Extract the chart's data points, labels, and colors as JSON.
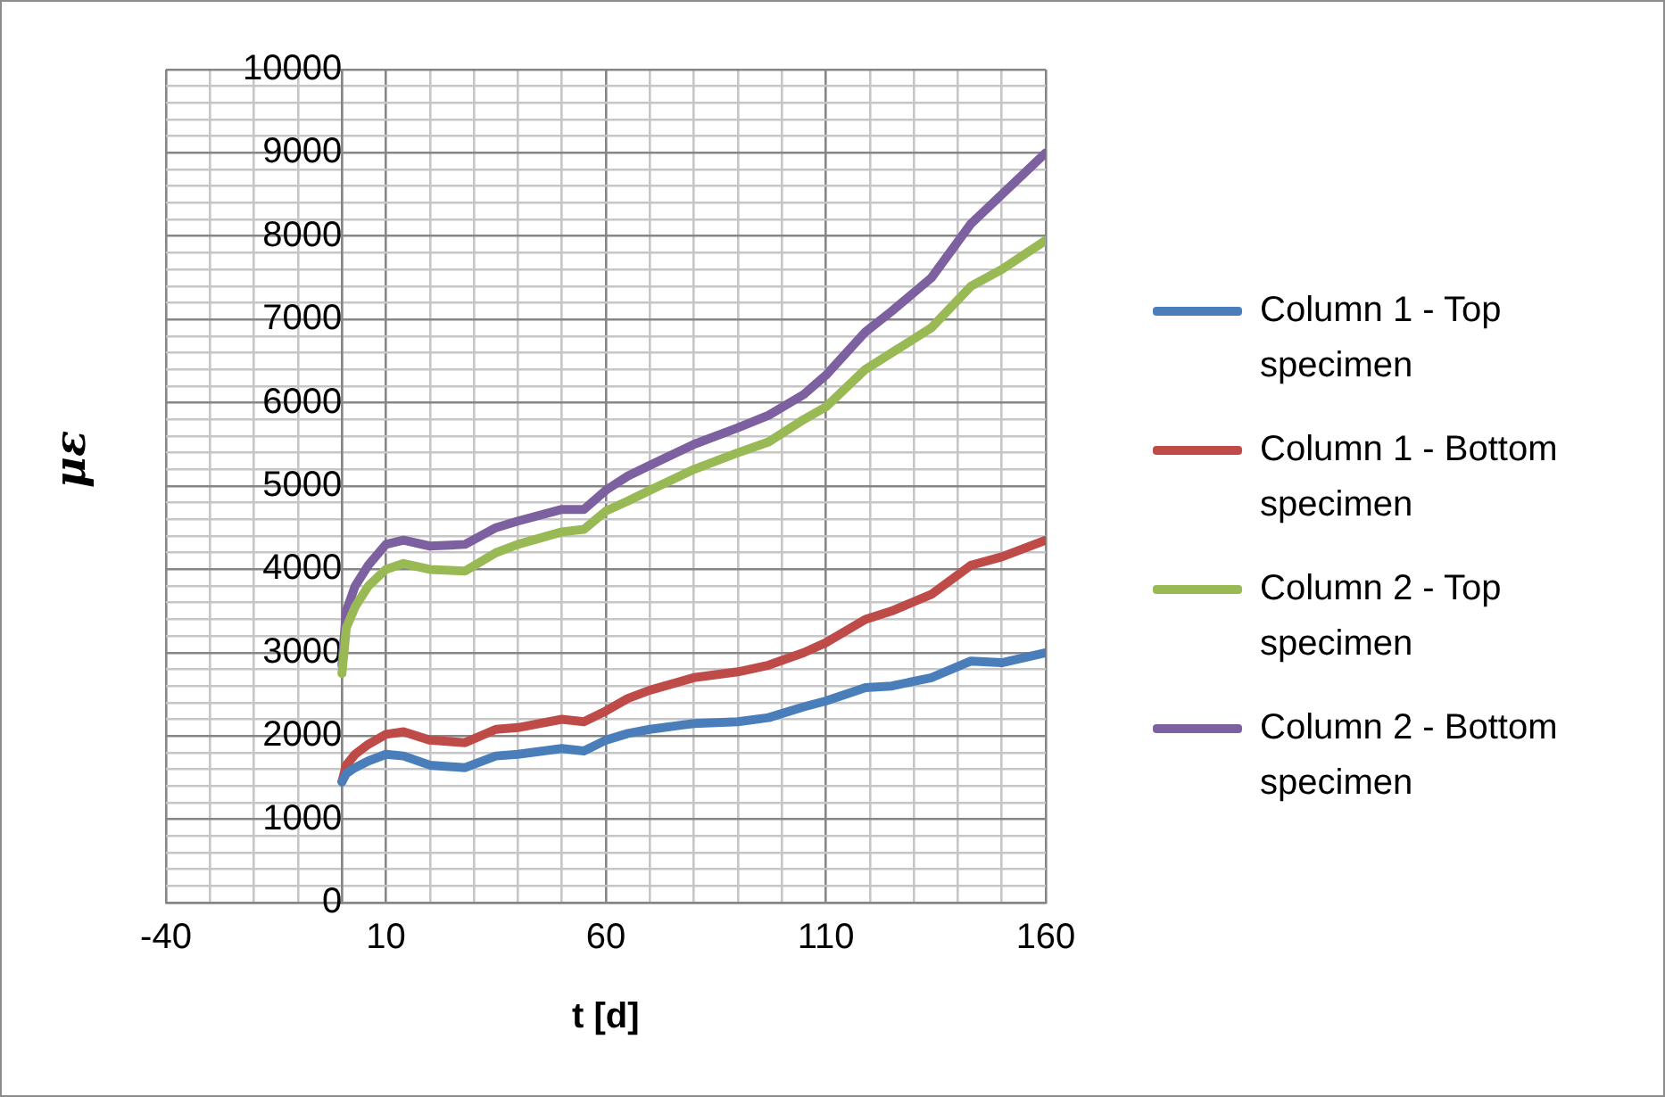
{
  "chart_data": {
    "type": "line",
    "xlabel": "t [d]",
    "ylabel": "με",
    "xlim": [
      -40,
      160
    ],
    "ylim": [
      0,
      10000
    ],
    "xticks": [
      -40,
      {
        "value": -30,
        "label": null
      },
      {
        "value": -20,
        "label": null
      },
      {
        "value": -10,
        "label": null
      },
      {
        "value": 0,
        "label": null
      },
      10,
      {
        "value": 20,
        "label": null
      },
      {
        "value": 30,
        "label": null
      },
      {
        "value": 40,
        "label": null
      },
      {
        "value": 50,
        "label": null
      },
      60,
      {
        "value": 70,
        "label": null
      },
      {
        "value": 80,
        "label": null
      },
      {
        "value": 90,
        "label": null
      },
      {
        "value": 100,
        "label": null
      },
      110,
      {
        "value": 120,
        "label": null
      },
      {
        "value": 130,
        "label": null
      },
      {
        "value": 140,
        "label": null
      },
      {
        "value": 150,
        "label": null
      },
      160
    ],
    "yticks": [
      0,
      {
        "value": 200,
        "label": null
      },
      {
        "value": 400,
        "label": null
      },
      {
        "value": 600,
        "label": null
      },
      {
        "value": 800,
        "label": null
      },
      1000,
      {
        "value": 1200,
        "label": null
      },
      {
        "value": 1400,
        "label": null
      },
      {
        "value": 1600,
        "label": null
      },
      {
        "value": 1800,
        "label": null
      },
      2000,
      {
        "value": 2200,
        "label": null
      },
      {
        "value": 2400,
        "label": null
      },
      {
        "value": 2600,
        "label": null
      },
      {
        "value": 2800,
        "label": null
      },
      3000,
      {
        "value": 3200,
        "label": null
      },
      {
        "value": 3400,
        "label": null
      },
      {
        "value": 3600,
        "label": null
      },
      {
        "value": 3800,
        "label": null
      },
      4000,
      {
        "value": 4200,
        "label": null
      },
      {
        "value": 4400,
        "label": null
      },
      {
        "value": 4600,
        "label": null
      },
      {
        "value": 4800,
        "label": null
      },
      5000,
      {
        "value": 5200,
        "label": null
      },
      {
        "value": 5400,
        "label": null
      },
      {
        "value": 5600,
        "label": null
      },
      {
        "value": 5800,
        "label": null
      },
      6000,
      {
        "value": 6200,
        "label": null
      },
      {
        "value": 6400,
        "label": null
      },
      {
        "value": 6600,
        "label": null
      },
      {
        "value": 6800,
        "label": null
      },
      7000,
      {
        "value": 7200,
        "label": null
      },
      {
        "value": 7400,
        "label": null
      },
      {
        "value": 7600,
        "label": null
      },
      {
        "value": 7800,
        "label": null
      },
      8000,
      {
        "value": 8200,
        "label": null
      },
      {
        "value": 8400,
        "label": null
      },
      {
        "value": 8600,
        "label": null
      },
      {
        "value": 8800,
        "label": null
      },
      9000,
      {
        "value": 9200,
        "label": null
      },
      {
        "value": 9400,
        "label": null
      },
      {
        "value": 9600,
        "label": null
      },
      {
        "value": 9800,
        "label": null
      },
      10000
    ],
    "x": [
      0,
      1,
      3,
      6,
      10,
      14,
      20,
      28,
      35,
      40,
      50,
      55,
      60,
      65,
      70,
      80,
      90,
      97,
      105,
      110,
      119,
      125,
      134,
      143,
      150,
      160
    ],
    "series": [
      {
        "name": "Column 1 - Top specimen",
        "color": "#4a7ebb",
        "values": [
          1450,
          1550,
          1620,
          1700,
          1780,
          1760,
          1650,
          1620,
          1760,
          1780,
          1850,
          1820,
          1950,
          2030,
          2080,
          2150,
          2170,
          2220,
          2350,
          2420,
          2580,
          2600,
          2700,
          2900,
          2880,
          3000
        ]
      },
      {
        "name": "Column 1 - Bottom specimen",
        "color": "#be4b48",
        "values": [
          1450,
          1650,
          1780,
          1900,
          2020,
          2050,
          1950,
          1920,
          2080,
          2100,
          2200,
          2170,
          2300,
          2450,
          2550,
          2700,
          2770,
          2850,
          3000,
          3120,
          3400,
          3500,
          3700,
          4050,
          4150,
          4350
        ]
      },
      {
        "name": "Column 2 - Top specimen",
        "color": "#98b954",
        "values": [
          2750,
          3300,
          3550,
          3800,
          4000,
          4070,
          4000,
          3980,
          4200,
          4300,
          4450,
          4480,
          4700,
          4820,
          4950,
          5200,
          5400,
          5530,
          5800,
          5950,
          6400,
          6600,
          6900,
          7400,
          7600,
          7950
        ]
      },
      {
        "name": "Column 2 - Bottom specimen",
        "color": "#7d60a0",
        "values": [
          2850,
          3500,
          3800,
          4050,
          4300,
          4350,
          4280,
          4300,
          4500,
          4580,
          4720,
          4720,
          4950,
          5120,
          5250,
          5500,
          5700,
          5850,
          6100,
          6330,
          6850,
          7100,
          7500,
          8150,
          8500,
          9000
        ]
      }
    ],
    "grid": true,
    "legend": "right",
    "marker": "none",
    "line_style": "solid"
  }
}
